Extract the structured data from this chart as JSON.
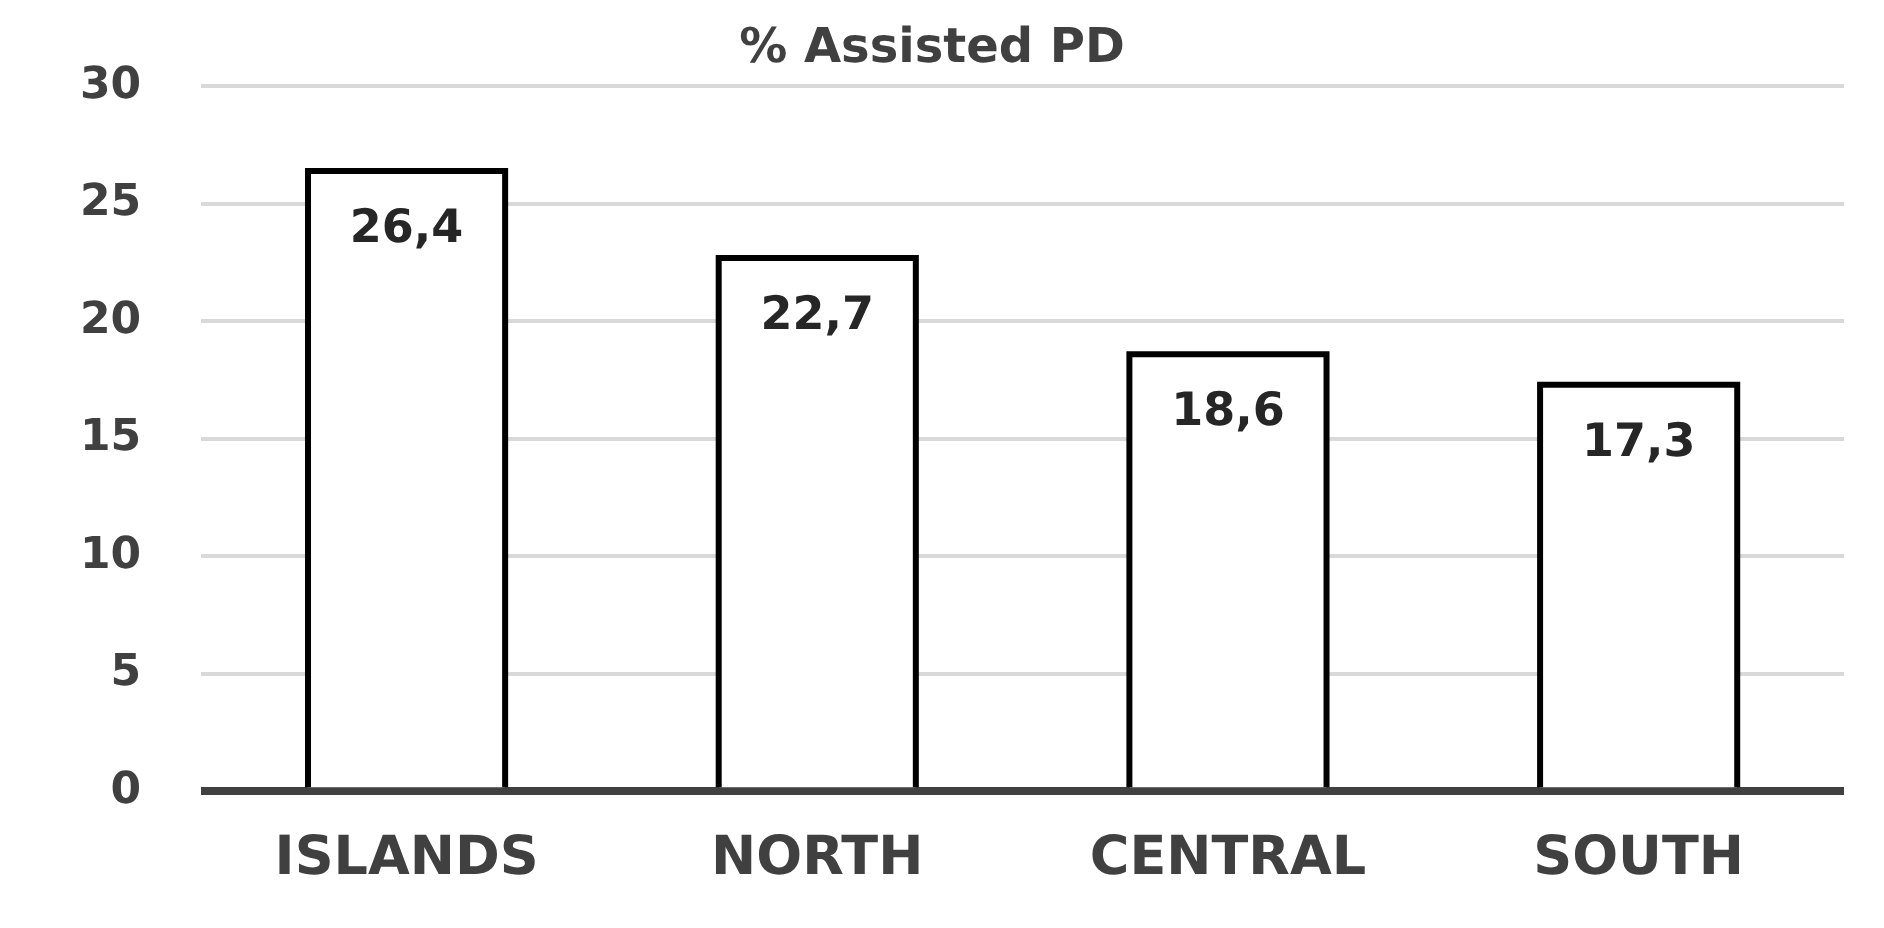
{
  "chart_data": {
    "type": "bar",
    "title": "% Assisted PD",
    "categories": [
      "ISLANDS",
      "NORTH",
      "CENTRAL",
      "SOUTH"
    ],
    "values": [
      26.4,
      22.7,
      18.6,
      17.3
    ],
    "value_labels": [
      "26,4",
      "22,7",
      "18,6",
      "17,3"
    ],
    "color": "#ffffff",
    "ylim": [
      0,
      30
    ],
    "yticks": [
      0,
      5,
      10,
      15,
      20,
      25,
      30
    ],
    "grid": "y",
    "legend": false
  }
}
